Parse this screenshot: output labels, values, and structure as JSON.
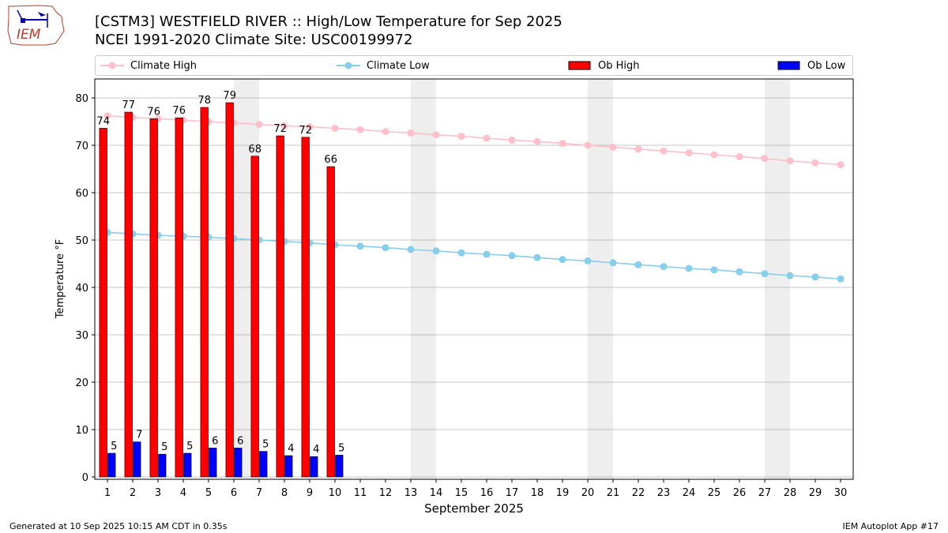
{
  "header": {
    "title_line1": "[CSTM3] WESTFIELD RIVER :: High/Low Temperature for Sep 2025",
    "title_line2": "NCEI 1991-2020 Climate Site: USC00199972",
    "logo_text": "IEM"
  },
  "footer": {
    "generated": "Generated at 10 Sep 2025 10:15 AM CDT in 0.35s",
    "app": "IEM Autoplot App #17"
  },
  "colors": {
    "climate_high": "#ffc0cb",
    "climate_low": "#87ceeb",
    "ob_high": "#ff0000",
    "ob_low": "#0000ff",
    "weekend_shade": "#eeeeee",
    "grid": "#b0b0b0"
  },
  "chart_data": {
    "type": "bar",
    "xlabel": "September 2025",
    "ylabel": "Temperature °F",
    "ylim": [
      -0.5,
      84
    ],
    "xlim": [
      0.5,
      30.5
    ],
    "yticks": [
      0,
      10,
      20,
      30,
      40,
      50,
      60,
      70,
      80
    ],
    "grid": "horizontal",
    "legend_placement": "top",
    "days": [
      1,
      2,
      3,
      4,
      5,
      6,
      7,
      8,
      9,
      10,
      11,
      12,
      13,
      14,
      15,
      16,
      17,
      18,
      19,
      20,
      21,
      22,
      23,
      24,
      25,
      26,
      27,
      28,
      29,
      30
    ],
    "weekend_days": [
      6,
      7,
      13,
      14,
      20,
      21,
      27,
      28
    ],
    "series": [
      {
        "name": "Climate High",
        "kind": "line",
        "values": [
          76.2,
          75.9,
          75.6,
          75.3,
          75.0,
          74.7,
          74.4,
          74.1,
          73.9,
          73.6,
          73.3,
          72.9,
          72.6,
          72.2,
          71.9,
          71.5,
          71.1,
          70.8,
          70.4,
          70.0,
          69.6,
          69.2,
          68.8,
          68.4,
          68.0,
          67.6,
          67.2,
          66.7,
          66.3,
          65.9
        ]
      },
      {
        "name": "Climate Low",
        "kind": "line",
        "values": [
          51.6,
          51.3,
          51.0,
          50.8,
          50.6,
          50.3,
          50.0,
          49.7,
          49.4,
          49.0,
          48.7,
          48.4,
          48.0,
          47.7,
          47.3,
          47.0,
          46.7,
          46.3,
          45.9,
          45.6,
          45.2,
          44.8,
          44.4,
          44.0,
          43.7,
          43.3,
          42.9,
          42.5,
          42.2,
          41.8
        ]
      },
      {
        "name": "Ob High",
        "kind": "bar",
        "values": [
          73.6,
          77.0,
          75.6,
          75.8,
          78.0,
          79.0,
          67.7,
          72.0,
          71.7,
          65.5
        ],
        "labels": [
          "74",
          "77",
          "76",
          "76",
          "78",
          "79",
          "68",
          "72",
          "72",
          "66"
        ]
      },
      {
        "name": "Ob Low",
        "kind": "bar",
        "values": [
          5.0,
          7.4,
          4.8,
          5.0,
          6.1,
          6.1,
          5.4,
          4.5,
          4.3,
          4.6
        ],
        "labels": [
          "5",
          "7",
          "5",
          "5",
          "6",
          "6",
          "5",
          "4",
          "4",
          "5"
        ]
      }
    ]
  }
}
